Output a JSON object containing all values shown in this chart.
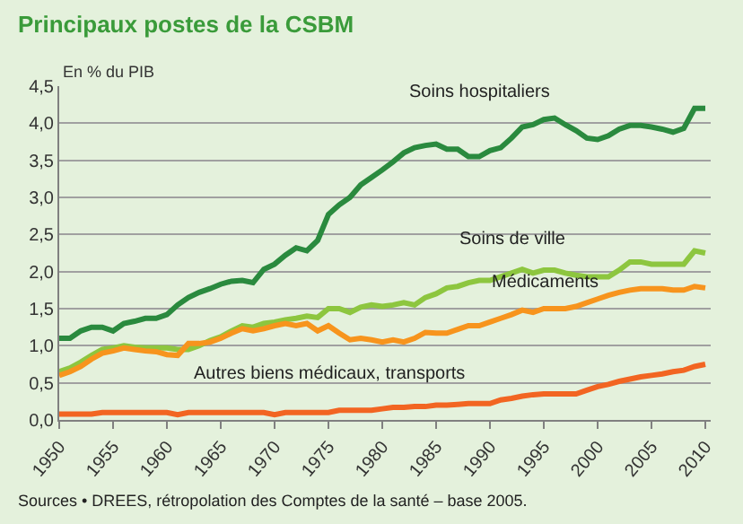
{
  "chart_data": {
    "type": "line",
    "title": "Principaux postes de la CSBM",
    "ylabel": "En % du PIB",
    "x": [
      1950,
      1951,
      1952,
      1953,
      1954,
      1955,
      1956,
      1957,
      1958,
      1959,
      1960,
      1961,
      1962,
      1963,
      1964,
      1965,
      1966,
      1967,
      1968,
      1969,
      1970,
      1971,
      1972,
      1973,
      1974,
      1975,
      1976,
      1977,
      1978,
      1979,
      1980,
      1981,
      1982,
      1983,
      1984,
      1985,
      1986,
      1987,
      1988,
      1989,
      1990,
      1991,
      1992,
      1993,
      1994,
      1995,
      1996,
      1997,
      1998,
      1999,
      2000,
      2001,
      2002,
      2003,
      2004,
      2005,
      2006,
      2007,
      2008,
      2009,
      2010
    ],
    "series": [
      {
        "name": "Soins hospitaliers",
        "color": "#2a8a3e",
        "values": [
          1.1,
          1.1,
          1.2,
          1.25,
          1.25,
          1.2,
          1.3,
          1.33,
          1.37,
          1.37,
          1.42,
          1.55,
          1.65,
          1.72,
          1.77,
          1.83,
          1.87,
          1.88,
          1.85,
          2.03,
          2.1,
          2.22,
          2.32,
          2.28,
          2.42,
          2.77,
          2.9,
          3.0,
          3.17,
          3.27,
          3.37,
          3.48,
          3.6,
          3.67,
          3.7,
          3.72,
          3.65,
          3.65,
          3.55,
          3.55,
          3.63,
          3.67,
          3.8,
          3.95,
          3.98,
          4.05,
          4.07,
          3.98,
          3.9,
          3.8,
          3.78,
          3.83,
          3.92,
          3.97,
          3.97,
          3.95,
          3.92,
          3.88,
          3.93,
          4.2,
          4.2
        ]
      },
      {
        "name": "Soins de ville",
        "color": "#8dc63f",
        "values": [
          0.65,
          0.7,
          0.78,
          0.87,
          0.95,
          0.97,
          1.0,
          0.98,
          0.97,
          0.97,
          0.97,
          0.95,
          0.95,
          1.0,
          1.07,
          1.12,
          1.2,
          1.27,
          1.25,
          1.3,
          1.32,
          1.35,
          1.37,
          1.4,
          1.38,
          1.5,
          1.5,
          1.45,
          1.52,
          1.55,
          1.53,
          1.55,
          1.58,
          1.55,
          1.65,
          1.7,
          1.78,
          1.8,
          1.85,
          1.88,
          1.88,
          1.93,
          1.98,
          2.03,
          1.98,
          2.02,
          2.02,
          1.98,
          1.95,
          1.93,
          1.93,
          1.93,
          2.02,
          2.13,
          2.13,
          2.1,
          2.1,
          2.1,
          2.1,
          2.28,
          2.25
        ]
      },
      {
        "name": "Médicaments",
        "color": "#f7941d",
        "values": [
          0.6,
          0.65,
          0.72,
          0.82,
          0.9,
          0.93,
          0.97,
          0.95,
          0.93,
          0.92,
          0.88,
          0.87,
          1.03,
          1.03,
          1.05,
          1.1,
          1.17,
          1.23,
          1.2,
          1.23,
          1.27,
          1.3,
          1.27,
          1.3,
          1.2,
          1.27,
          1.17,
          1.08,
          1.1,
          1.08,
          1.05,
          1.08,
          1.05,
          1.1,
          1.18,
          1.17,
          1.17,
          1.22,
          1.27,
          1.27,
          1.32,
          1.37,
          1.42,
          1.48,
          1.45,
          1.5,
          1.5,
          1.5,
          1.53,
          1.58,
          1.63,
          1.68,
          1.72,
          1.75,
          1.77,
          1.77,
          1.77,
          1.75,
          1.75,
          1.8,
          1.78
        ]
      },
      {
        "name": "Autres biens médicaux, transports",
        "color": "#f26522",
        "values": [
          0.08,
          0.08,
          0.08,
          0.08,
          0.1,
          0.1,
          0.1,
          0.1,
          0.1,
          0.1,
          0.1,
          0.07,
          0.1,
          0.1,
          0.1,
          0.1,
          0.1,
          0.1,
          0.1,
          0.1,
          0.07,
          0.1,
          0.1,
          0.1,
          0.1,
          0.1,
          0.13,
          0.13,
          0.13,
          0.13,
          0.15,
          0.17,
          0.17,
          0.18,
          0.18,
          0.2,
          0.2,
          0.21,
          0.22,
          0.22,
          0.22,
          0.27,
          0.29,
          0.32,
          0.34,
          0.35,
          0.35,
          0.35,
          0.35,
          0.4,
          0.45,
          0.48,
          0.52,
          0.55,
          0.58,
          0.6,
          0.62,
          0.65,
          0.67,
          0.72,
          0.75
        ]
      }
    ],
    "annotations": [
      "Sources • DREES, rétropolation des Comptes de la santé – base 2005."
    ],
    "xlim": [
      1950,
      2010.5
    ],
    "xticks": [
      1950,
      1955,
      1960,
      1965,
      1970,
      1975,
      1980,
      1985,
      1990,
      1995,
      2000,
      2005,
      2010
    ],
    "ylim": [
      0,
      4.5
    ],
    "yticks": [
      {
        "value": 0,
        "label": "0,0"
      },
      {
        "value": 0.5,
        "label": "0,5"
      },
      {
        "value": 1,
        "label": "1,0"
      },
      {
        "value": 1.5,
        "label": "1,5"
      },
      {
        "value": 2,
        "label": "2,0"
      },
      {
        "value": 2.5,
        "label": "2,5"
      },
      {
        "value": 3,
        "label": "3,0"
      },
      {
        "value": 3.5,
        "label": "3,5"
      },
      {
        "value": 4,
        "label": "4,0"
      },
      {
        "value": 4.5,
        "label": "4,5"
      }
    ],
    "grid": "y",
    "legend": false,
    "marker": "none",
    "line_style": "solid"
  }
}
